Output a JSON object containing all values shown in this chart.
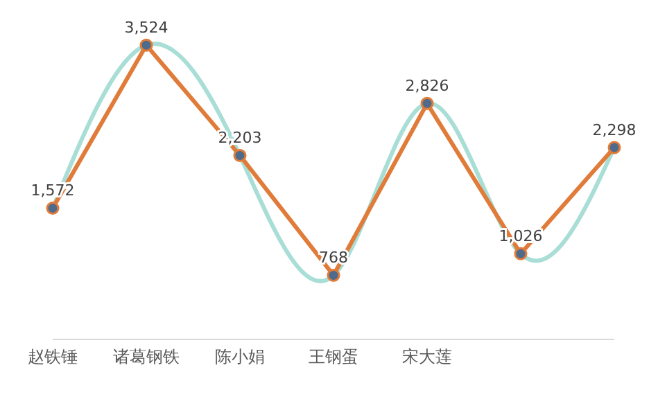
{
  "chart_data": {
    "type": "line",
    "categories": [
      "赵铁锤",
      "诸葛钢铁",
      "陈小娟",
      "王钢蛋",
      "宋大莲",
      null,
      null
    ],
    "series": [
      {
        "color": "#a8ded6",
        "marker": "none",
        "values": [
          1572,
          3524,
          2203,
          768,
          2826,
          1026,
          2298
        ]
      },
      {
        "color": "#e07b39",
        "marker": "circle",
        "values": [
          1572,
          3524,
          2203,
          768,
          2826,
          1026,
          2298
        ],
        "value_labels": [
          "1,572",
          "3,524",
          "2,203",
          "768",
          "2,826",
          "1,026",
          "2,298"
        ]
      }
    ],
    "grid": false,
    "legend": false
  }
}
